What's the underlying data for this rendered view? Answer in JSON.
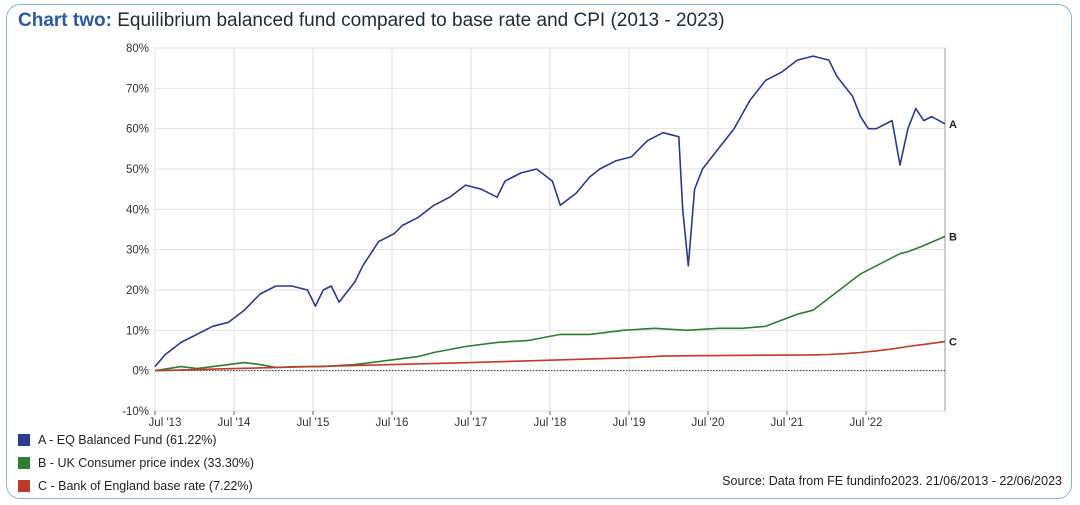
{
  "title": {
    "lead": "Chart two:",
    "text": "Equilibrium balanced fund compared to base rate and CPI (2013 - 2023)"
  },
  "source": "Source: Data from FE fundinfo2023. 21/06/2013 - 22/06/2023",
  "legend": [
    {
      "label": "A - EQ Balanced Fund (61.22%)",
      "color": "#2a3a8c"
    },
    {
      "label": "B - UK Consumer price index (33.30%)",
      "color": "#2e7d32"
    },
    {
      "label": "C - Bank of England base rate (7.22%)",
      "color": "#c0392b"
    }
  ],
  "chart_data": {
    "type": "line",
    "title": "Equilibrium balanced fund compared to base rate and CPI (2013 - 2023)",
    "xlabel": "",
    "ylabel": "",
    "x_ticks": [
      "Jul '13",
      "Jul '14",
      "Jul '15",
      "Jul '16",
      "Jul '17",
      "Jul '18",
      "Jul '19",
      "Jul '20",
      "Jul '21",
      "Jul '22"
    ],
    "x_range": [
      2013.47,
      2023.47
    ],
    "ylim": [
      -10,
      80
    ],
    "y_ticks": [
      -10,
      0,
      10,
      20,
      30,
      40,
      50,
      60,
      70,
      80
    ],
    "y_format": "percent",
    "grid": true,
    "legend_position": "bottom-left",
    "series": [
      {
        "name": "A - EQ Balanced Fund (61.22%)",
        "end_label": "A",
        "color": "#2a3a8c",
        "x": [
          2013.47,
          2013.6,
          2013.8,
          2014.0,
          2014.2,
          2014.4,
          2014.6,
          2014.8,
          2015.0,
          2015.2,
          2015.4,
          2015.5,
          2015.6,
          2015.7,
          2015.8,
          2016.0,
          2016.1,
          2016.3,
          2016.5,
          2016.6,
          2016.8,
          2017.0,
          2017.2,
          2017.4,
          2017.6,
          2017.8,
          2017.9,
          2018.1,
          2018.3,
          2018.5,
          2018.6,
          2018.8,
          2018.97,
          2019.1,
          2019.3,
          2019.5,
          2019.7,
          2019.9,
          2020.1,
          2020.15,
          2020.22,
          2020.3,
          2020.4,
          2020.6,
          2020.8,
          2021.0,
          2021.2,
          2021.4,
          2021.6,
          2021.8,
          2022.0,
          2022.1,
          2022.3,
          2022.4,
          2022.5,
          2022.6,
          2022.8,
          2022.9,
          2023.0,
          2023.1,
          2023.2,
          2023.3,
          2023.47
        ],
        "values": [
          1,
          4,
          7,
          9,
          11,
          12,
          15,
          19,
          21,
          21,
          20,
          16,
          20,
          21,
          17,
          22,
          26,
          32,
          34,
          36,
          38,
          41,
          43,
          46,
          45,
          43,
          47,
          49,
          50,
          47,
          41,
          44,
          48,
          50,
          52,
          53,
          57,
          59,
          58,
          40,
          26,
          45,
          50,
          55,
          60,
          67,
          72,
          74,
          77,
          78,
          77,
          73,
          68,
          63,
          60,
          60,
          62,
          51,
          60,
          65,
          62,
          63,
          61.2
        ]
      },
      {
        "name": "B - UK Consumer price index (33.30%)",
        "end_label": "B",
        "color": "#2e7d32",
        "x": [
          2013.47,
          2013.8,
          2014.0,
          2014.4,
          2014.6,
          2014.8,
          2015.0,
          2015.3,
          2015.6,
          2016.0,
          2016.4,
          2016.8,
          2017.0,
          2017.4,
          2017.8,
          2018.2,
          2018.6,
          2018.97,
          2019.4,
          2019.8,
          2020.2,
          2020.6,
          2020.9,
          2021.2,
          2021.4,
          2021.6,
          2021.8,
          2022.0,
          2022.2,
          2022.4,
          2022.6,
          2022.8,
          2022.9,
          2023.0,
          2023.2,
          2023.47
        ],
        "values": [
          0,
          1,
          0.5,
          1.5,
          2,
          1.5,
          0.8,
          1,
          1,
          1.5,
          2.5,
          3.5,
          4.5,
          6,
          7,
          7.5,
          9,
          9,
          10,
          10.5,
          10,
          10.5,
          10.5,
          11,
          12.5,
          14,
          15,
          18,
          21,
          24,
          26,
          28,
          29,
          29.5,
          31,
          33.3
        ]
      },
      {
        "name": "C - Bank of England base rate (7.22%)",
        "end_label": "C",
        "color": "#c0392b",
        "x": [
          2013.47,
          2014.47,
          2015.47,
          2016.47,
          2017.47,
          2018.47,
          2019.47,
          2019.9,
          2020.3,
          2021.0,
          2021.8,
          2022.0,
          2022.2,
          2022.4,
          2022.6,
          2022.8,
          2023.0,
          2023.2,
          2023.47
        ],
        "values": [
          0,
          0.5,
          1,
          1.5,
          2,
          2.6,
          3.2,
          3.6,
          3.7,
          3.8,
          3.9,
          4,
          4.2,
          4.5,
          4.9,
          5.4,
          6,
          6.5,
          7.2
        ]
      }
    ]
  }
}
